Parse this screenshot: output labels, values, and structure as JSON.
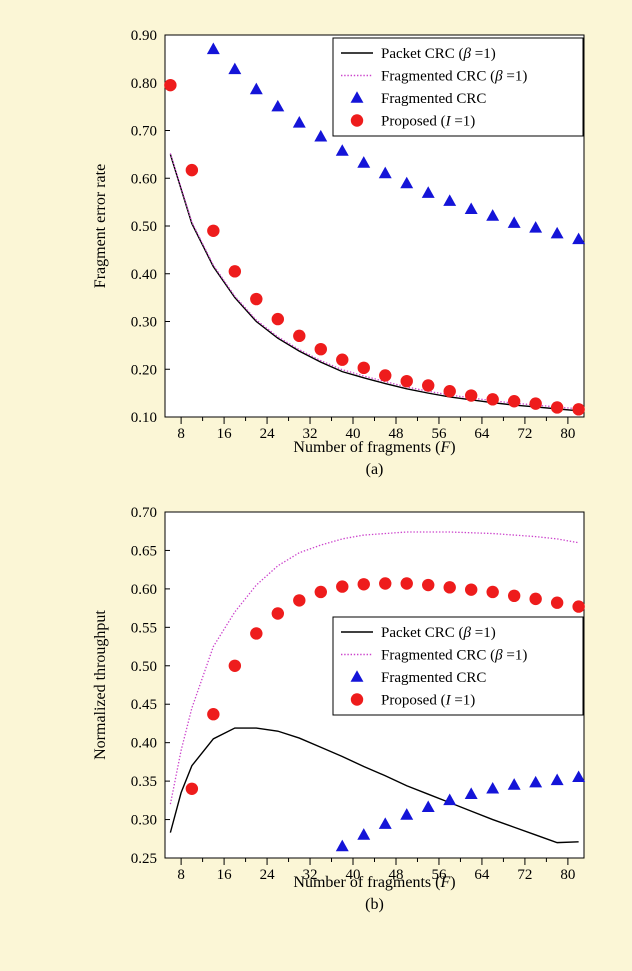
{
  "chart_data": [
    {
      "type": "line",
      "caption": "(a)",
      "xlabel_main": "Number of fragments (",
      "xlabel_italic": "F",
      "xlabel_tail": ")",
      "ylabel": "Fragment error rate",
      "xlim": [
        5,
        83
      ],
      "ylim": [
        0.1,
        0.9
      ],
      "xticks": [
        8,
        16,
        24,
        32,
        40,
        48,
        56,
        64,
        72,
        80
      ],
      "yticks": [
        "0.10",
        "0.20",
        "0.30",
        "0.40",
        "0.50",
        "0.60",
        "0.70",
        "0.80",
        "0.90"
      ],
      "legend_position": "top-right",
      "series": [
        {
          "legend": {
            "main": "Packet CRC (",
            "sym": "β",
            "tail": " =1)"
          },
          "style": "line",
          "color": "#000000",
          "x": [
            6,
            10,
            14,
            18,
            22,
            26,
            30,
            34,
            38,
            42,
            46,
            50,
            54,
            58,
            62,
            66,
            70,
            74,
            78,
            82
          ],
          "y": [
            0.65,
            0.505,
            0.415,
            0.35,
            0.3,
            0.265,
            0.238,
            0.215,
            0.195,
            0.182,
            0.17,
            0.159,
            0.15,
            0.142,
            0.136,
            0.13,
            0.125,
            0.121,
            0.117,
            0.113
          ]
        },
        {
          "legend": {
            "main": "Fragmented CRC (",
            "sym": "β",
            "tail": " =1)"
          },
          "style": "dotted",
          "color": "#cc44cc",
          "x": [
            6,
            10,
            14,
            18,
            22,
            26,
            30,
            34,
            38,
            42,
            46,
            50,
            54,
            58,
            62,
            66,
            70,
            74,
            78,
            82
          ],
          "y": [
            0.652,
            0.508,
            0.418,
            0.353,
            0.303,
            0.268,
            0.241,
            0.218,
            0.199,
            0.186,
            0.174,
            0.163,
            0.154,
            0.146,
            0.14,
            0.134,
            0.129,
            0.125,
            0.121,
            0.117
          ]
        },
        {
          "legend": {
            "main": "Fragmented CRC",
            "sym": "",
            "tail": ""
          },
          "style": "triangle",
          "color": "#1414d8",
          "x": [
            14,
            18,
            22,
            26,
            30,
            34,
            38,
            42,
            46,
            50,
            54,
            58,
            62,
            66,
            70,
            74,
            78,
            82
          ],
          "y": [
            0.87,
            0.828,
            0.786,
            0.75,
            0.716,
            0.687,
            0.657,
            0.632,
            0.61,
            0.589,
            0.569,
            0.552,
            0.535,
            0.521,
            0.506,
            0.496,
            0.484,
            0.472
          ]
        },
        {
          "legend": {
            "main": "Proposed (",
            "sym": "I",
            "tail": " =1)"
          },
          "style": "circle",
          "color": "#ee1c1c",
          "x": [
            6,
            10,
            14,
            18,
            22,
            26,
            30,
            34,
            38,
            42,
            46,
            50,
            54,
            58,
            62,
            66,
            70,
            74,
            78,
            82
          ],
          "y": [
            0.795,
            0.617,
            0.49,
            0.405,
            0.347,
            0.305,
            0.27,
            0.242,
            0.22,
            0.203,
            0.187,
            0.175,
            0.166,
            0.154,
            0.145,
            0.137,
            0.133,
            0.128,
            0.12,
            0.116
          ]
        }
      ]
    },
    {
      "type": "line",
      "caption": "(b)",
      "xlabel_main": "Number of fragments (",
      "xlabel_italic": "F",
      "xlabel_tail": ")",
      "ylabel": "Normalized throughput",
      "xlim": [
        5,
        83
      ],
      "ylim": [
        0.25,
        0.7
      ],
      "xticks": [
        8,
        16,
        24,
        32,
        40,
        48,
        56,
        64,
        72,
        80
      ],
      "yticks": [
        "0.25",
        "0.30",
        "0.35",
        "0.40",
        "0.45",
        "0.50",
        "0.55",
        "0.60",
        "0.65",
        "0.70"
      ],
      "legend_position": "center-right",
      "series": [
        {
          "legend": {
            "main": "Packet CRC (",
            "sym": "β",
            "tail": " =1)"
          },
          "style": "line",
          "color": "#000000",
          "x": [
            6,
            8,
            10,
            14,
            18,
            22,
            26,
            30,
            34,
            38,
            42,
            46,
            50,
            54,
            58,
            62,
            66,
            70,
            74,
            78,
            82
          ],
          "y": [
            0.283,
            0.335,
            0.37,
            0.405,
            0.419,
            0.419,
            0.415,
            0.406,
            0.394,
            0.382,
            0.369,
            0.357,
            0.344,
            0.333,
            0.322,
            0.311,
            0.3,
            0.29,
            0.28,
            0.27,
            0.271
          ]
        },
        {
          "legend": {
            "main": "Fragmented CRC (",
            "sym": "β",
            "tail": " =1)"
          },
          "style": "dotted",
          "color": "#cc44cc",
          "x": [
            6,
            8,
            10,
            14,
            18,
            22,
            26,
            30,
            34,
            38,
            42,
            46,
            50,
            54,
            58,
            62,
            66,
            70,
            74,
            78,
            82
          ],
          "y": [
            0.32,
            0.39,
            0.445,
            0.525,
            0.57,
            0.605,
            0.63,
            0.647,
            0.657,
            0.665,
            0.67,
            0.672,
            0.674,
            0.674,
            0.674,
            0.673,
            0.672,
            0.67,
            0.668,
            0.665,
            0.66
          ]
        },
        {
          "legend": {
            "main": "Fragmented CRC",
            "sym": "",
            "tail": ""
          },
          "style": "triangle",
          "color": "#1414d8",
          "x": [
            38,
            42,
            46,
            50,
            54,
            58,
            62,
            66,
            70,
            74,
            78,
            82
          ],
          "y": [
            0.265,
            0.28,
            0.294,
            0.306,
            0.316,
            0.325,
            0.333,
            0.34,
            0.345,
            0.348,
            0.351,
            0.355
          ]
        },
        {
          "legend": {
            "main": "Proposed (",
            "sym": "I",
            "tail": " =1)"
          },
          "style": "circle",
          "color": "#ee1c1c",
          "x": [
            10,
            14,
            18,
            22,
            26,
            30,
            34,
            38,
            42,
            46,
            50,
            54,
            58,
            62,
            66,
            70,
            74,
            78,
            82
          ],
          "y": [
            0.34,
            0.437,
            0.5,
            0.542,
            0.568,
            0.585,
            0.596,
            0.603,
            0.606,
            0.607,
            0.607,
            0.605,
            0.602,
            0.599,
            0.596,
            0.591,
            0.587,
            0.582,
            0.577
          ]
        }
      ]
    }
  ]
}
